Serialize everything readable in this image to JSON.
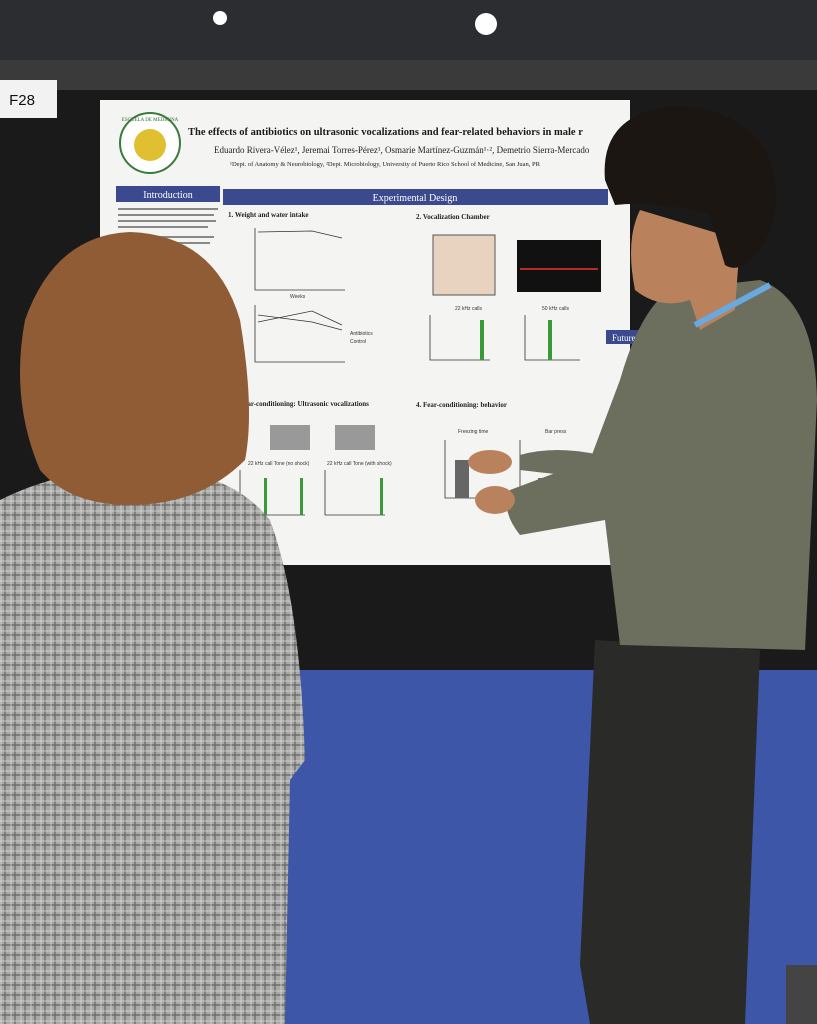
{
  "sign": {
    "label": "F28"
  },
  "poster": {
    "logo": "ESCUELA DE MEDICINA",
    "title": "The effects of antibiotics on ultrasonic vocalizations and fear-related behaviors in male r",
    "authors": "Eduardo Rivera-Vélez¹, Jeremai Torres-Pérez¹, Osmarie Martínez-Guzmán¹·², Demetrio Sierra-Mercado",
    "affiliations": "¹Dept. of Anatomy & Neurobiology, ²Dept. Microbiology, University of Puerto Rico School of Medicine, San Juan, PR",
    "sections": {
      "introduction": "Introduction",
      "experimental_design": "Experimental Design",
      "future": "Future Direc"
    },
    "panels": {
      "weight": "1. Weight and water intake",
      "chamber": "2. Vocalization Chamber",
      "usv": "Fear-conditioning: Ultrasonic vocalizations",
      "behavior": "4. Fear-conditioning: behavior",
      "calls22": "22 kHz calls",
      "calls50": "50 kHz calls",
      "freezing": "Freezing time",
      "barpress": "Bar press",
      "tone_no_shock": "22 kHz call Tone (no shock)",
      "tone_shock": "22 kHz call Tone (with shock)",
      "weeks": "Weeks",
      "antibiotics": "Antibiotics",
      "control": "Control"
    }
  }
}
